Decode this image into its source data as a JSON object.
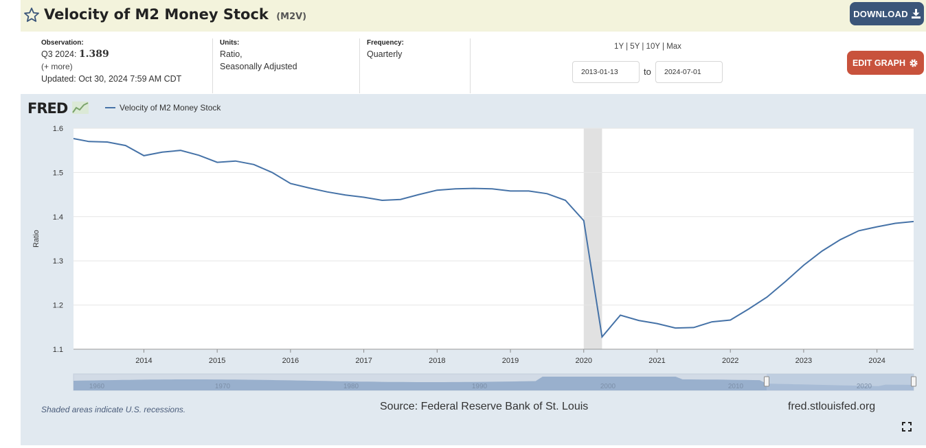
{
  "header": {
    "title": "Velocity of M2 Money Stock",
    "series_id": "(M2V)",
    "download_label": "DOWNLOAD"
  },
  "observation": {
    "label": "Observation:",
    "period": "Q3 2024:",
    "value": "1.389",
    "more": "(+ more)",
    "updated": "Updated: Oct 30, 2024 7:59 AM CDT"
  },
  "units": {
    "label": "Units:",
    "line1": "Ratio,",
    "line2": "Seasonally Adjusted"
  },
  "frequency": {
    "label": "Frequency:",
    "value": "Quarterly"
  },
  "ranges": [
    "1Y",
    "5Y",
    "10Y",
    "Max"
  ],
  "date_range": {
    "start": "2013-01-13",
    "to": "to",
    "end": "2024-07-01"
  },
  "edit_label": "EDIT GRAPH",
  "logo_text": "FRED",
  "legend_label": "Velocity of M2 Money Stock",
  "footer": {
    "note": "Shaded areas indicate U.S. recessions.",
    "source": "Source: Federal Reserve Bank of St. Louis",
    "site": "fred.stlouisfed.org"
  },
  "colors": {
    "line": "#4572a7",
    "recession": "#e1e1e1",
    "panel": "#e1e9f0"
  },
  "chart_data": {
    "type": "line",
    "ylabel": "Ratio",
    "xlim": [
      2013.04,
      2024.5
    ],
    "ylim": [
      1.1,
      1.6
    ],
    "yticks": [
      1.1,
      1.2,
      1.3,
      1.4,
      1.5,
      1.6
    ],
    "xticks": [
      "2014",
      "2015",
      "2016",
      "2017",
      "2018",
      "2019",
      "2020",
      "2021",
      "2022",
      "2023",
      "2024"
    ],
    "grid": true,
    "legend": "top-left",
    "recession": [
      2020.0,
      2020.25
    ],
    "series": [
      {
        "name": "Velocity of M2 Money Stock",
        "x": [
          2013.0,
          2013.25,
          2013.5,
          2013.75,
          2014.0,
          2014.25,
          2014.5,
          2014.75,
          2015.0,
          2015.25,
          2015.5,
          2015.75,
          2016.0,
          2016.25,
          2016.5,
          2016.75,
          2017.0,
          2017.25,
          2017.5,
          2017.75,
          2018.0,
          2018.25,
          2018.5,
          2018.75,
          2019.0,
          2019.25,
          2019.5,
          2019.75,
          2020.0,
          2020.25,
          2020.5,
          2020.75,
          2021.0,
          2021.25,
          2021.5,
          2021.75,
          2022.0,
          2022.25,
          2022.5,
          2022.75,
          2023.0,
          2023.25,
          2023.5,
          2023.75,
          2024.0,
          2024.25,
          2024.5
        ],
        "values": [
          1.578,
          1.57,
          1.569,
          1.561,
          1.538,
          1.546,
          1.55,
          1.539,
          1.523,
          1.526,
          1.518,
          1.5,
          1.475,
          1.465,
          1.456,
          1.449,
          1.444,
          1.437,
          1.439,
          1.45,
          1.46,
          1.463,
          1.464,
          1.463,
          1.458,
          1.458,
          1.452,
          1.437,
          1.391,
          1.128,
          1.177,
          1.165,
          1.158,
          1.148,
          1.149,
          1.162,
          1.166,
          1.191,
          1.218,
          1.253,
          1.29,
          1.322,
          1.348,
          1.368,
          1.377,
          1.385,
          1.389
        ]
      }
    ],
    "overview": {
      "ticks": [
        "1960",
        "1970",
        "1980",
        "1990",
        "2000",
        "2010",
        "2020"
      ]
    }
  }
}
